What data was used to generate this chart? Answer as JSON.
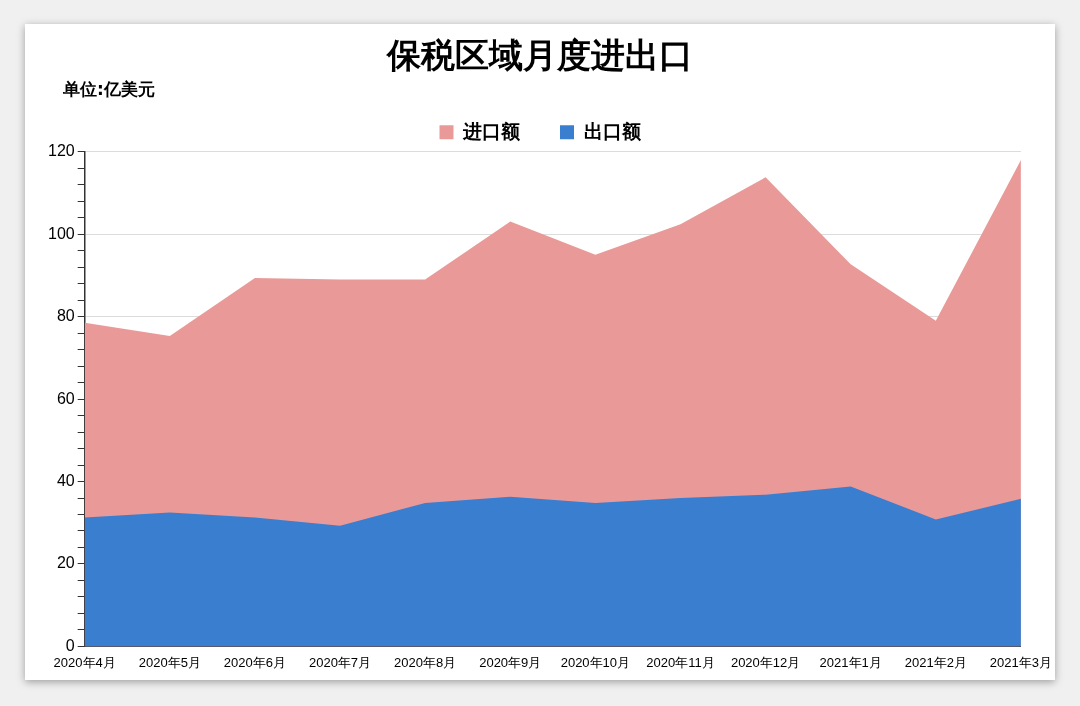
{
  "chart_data": {
    "type": "area",
    "title": "保税区域月度进出口",
    "annotations": [
      "单位:亿美元"
    ],
    "categories": [
      "2020年4月",
      "2020年5月",
      "2020年6月",
      "2020年7月",
      "2020年8月",
      "2020年9月",
      "2020年10月",
      "2020年11月",
      "2020年12月",
      "2021年1月",
      "2021年2月",
      "2021年3月"
    ],
    "series": [
      {
        "name": "进口额",
        "color": "#e99a98",
        "values": [
          78.5,
          75.3,
          89.4,
          89,
          89,
          103.1,
          95,
          102.4,
          113.8,
          92.7,
          79,
          118
        ]
      },
      {
        "name": "出口额",
        "color": "#3a7ecf",
        "values": [
          31.3,
          32.5,
          31.3,
          29.3,
          34.8,
          36.3,
          34.8,
          36,
          36.8,
          38.8,
          30.8,
          35.8
        ]
      }
    ],
    "ylim": [
      0,
      120
    ],
    "yticks": [
      0,
      {
        "value": 4,
        "label": null
      },
      {
        "value": 8,
        "label": null
      },
      {
        "value": 12,
        "label": null
      },
      {
        "value": 16,
        "label": null
      },
      20,
      {
        "value": 24,
        "label": null
      },
      {
        "value": 28,
        "label": null
      },
      {
        "value": 32,
        "label": null
      },
      {
        "value": 36,
        "label": null
      },
      40,
      {
        "value": 44,
        "label": null
      },
      {
        "value": 48,
        "label": null
      },
      {
        "value": 52,
        "label": null
      },
      {
        "value": 56,
        "label": null
      },
      60,
      {
        "value": 64,
        "label": null
      },
      {
        "value": 68,
        "label": null
      },
      {
        "value": 72,
        "label": null
      },
      {
        "value": 76,
        "label": null
      },
      80,
      {
        "value": 84,
        "label": null
      },
      {
        "value": 88,
        "label": null
      },
      {
        "value": 92,
        "label": null
      },
      {
        "value": 96,
        "label": null
      },
      100,
      {
        "value": 104,
        "label": null
      },
      {
        "value": 108,
        "label": null
      },
      {
        "value": 112,
        "label": null
      },
      {
        "value": 116,
        "label": null
      },
      120
    ],
    "grid": "y",
    "legend": "top",
    "marker": "none"
  }
}
